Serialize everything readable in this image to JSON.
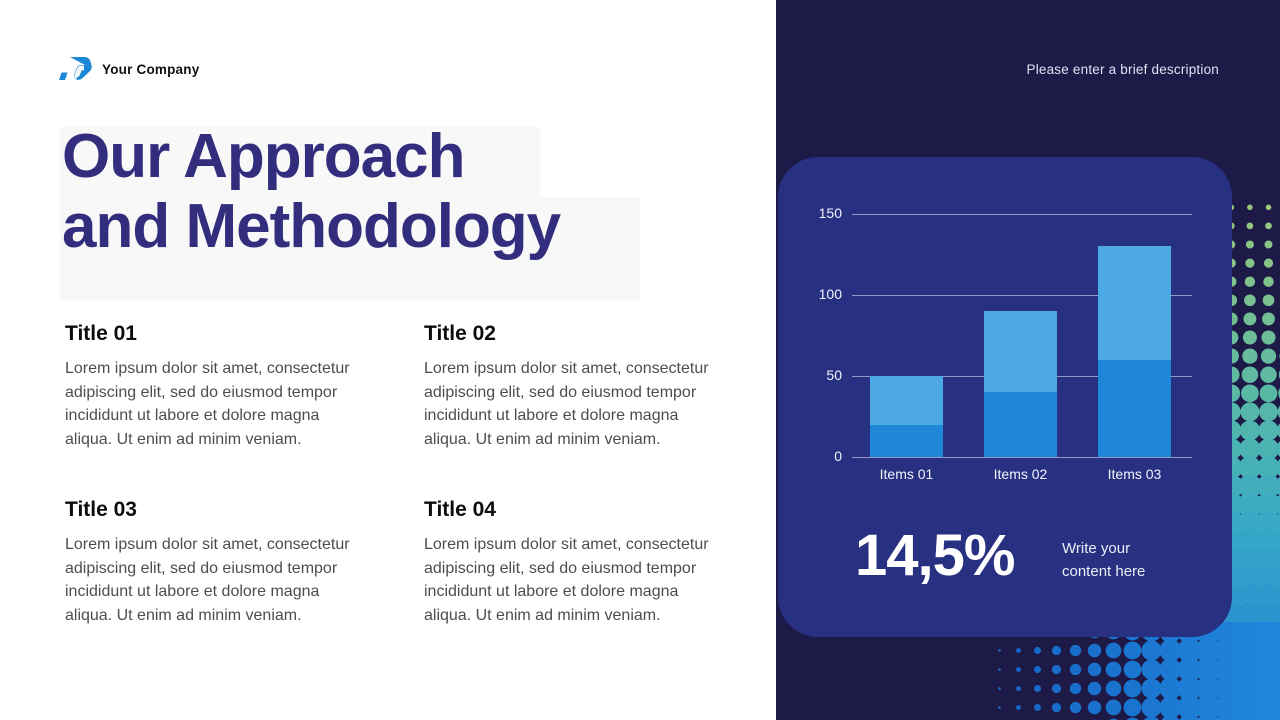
{
  "brand": {
    "name": "Your Company"
  },
  "header": {
    "description_placeholder": "Please enter a brief description"
  },
  "title": {
    "line1": "Our Approach",
    "line2": "and Methodology"
  },
  "sections": [
    {
      "title": "Title 01",
      "body": "Lorem ipsum dolor sit amet, consectetur adipiscing elit, sed do eiusmod tempor incididunt ut labore et dolore magna aliqua. Ut enim ad minim veniam."
    },
    {
      "title": "Title 02",
      "body": "Lorem ipsum dolor sit amet, consectetur adipiscing elit, sed do eiusmod tempor incididunt ut labore et dolore magna aliqua. Ut enim ad minim veniam."
    },
    {
      "title": "Title 03",
      "body": "Lorem ipsum dolor sit amet, consectetur adipiscing elit, sed do eiusmod tempor incididunt ut labore et dolore magna aliqua. Ut enim ad minim veniam."
    },
    {
      "title": "Title 04",
      "body": "Lorem ipsum dolor sit amet, consectetur adipiscing elit, sed do eiusmod tempor incididunt ut labore et dolore magna aliqua. Ut enim ad minim veniam."
    }
  ],
  "chart_data": {
    "type": "bar",
    "stacked": true,
    "title": "",
    "categories": [
      "Items 01",
      "Items 02",
      "Items 03"
    ],
    "series": [
      {
        "name": "segment-bottom",
        "color": "#1E87D8",
        "values": [
          20,
          40,
          60
        ]
      },
      {
        "name": "segment-top",
        "color": "#4DA9E4",
        "values": [
          30,
          50,
          70
        ]
      }
    ],
    "totals": [
      50,
      90,
      130
    ],
    "yticks": [
      0,
      50,
      100,
      150
    ],
    "ylim": [
      0,
      150
    ],
    "grid": true,
    "legend_position": "none"
  },
  "stat": {
    "value": "14,5%",
    "caption_lines": [
      "Write your",
      "content here"
    ]
  },
  "colors": {
    "panel_bg": "#1D1A47",
    "card_bg": "#283081",
    "title_text": "#332D7E",
    "logo_blue": "#1B87D6",
    "bar_bottom": "#1E87D8",
    "bar_top": "#4DA9E4",
    "halftone_right_stops": [
      "#9CC878",
      "#55B8A8",
      "#35A8C8",
      "#1E78D4"
    ],
    "halftone_bottom_stops": [
      "#1565C4",
      "#2086DC"
    ]
  }
}
